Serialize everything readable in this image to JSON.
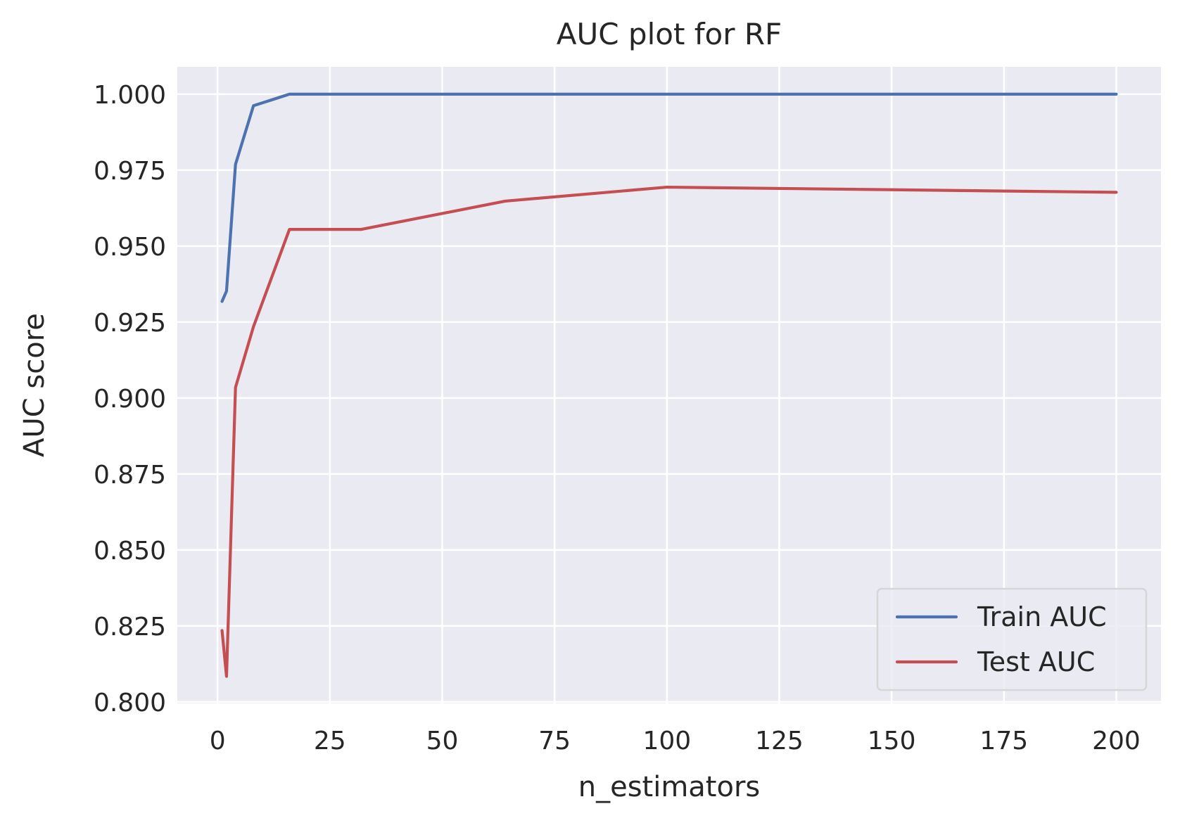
{
  "chart_data": {
    "type": "line",
    "title": "AUC plot for RF",
    "xlabel": "n_estimators",
    "ylabel": "AUC score",
    "xlim": [
      -8.95,
      209.95
    ],
    "ylim": [
      0.7995,
      1.009
    ],
    "xticks": [
      0,
      25,
      50,
      75,
      100,
      125,
      150,
      175,
      200
    ],
    "yticks": [
      0.8,
      0.825,
      0.85,
      0.875,
      0.9,
      0.925,
      0.95,
      0.975,
      1.0
    ],
    "xtick_labels": [
      "0",
      "25",
      "50",
      "75",
      "100",
      "125",
      "150",
      "175",
      "200"
    ],
    "ytick_labels": [
      "0.800",
      "0.825",
      "0.850",
      "0.875",
      "0.900",
      "0.925",
      "0.950",
      "0.975",
      "1.000"
    ],
    "grid": true,
    "legend_position": "lower-right",
    "background_color": "#eaeaf2",
    "series": [
      {
        "name": "Train AUC",
        "color": "#4c72b0",
        "x": [
          1,
          2,
          4,
          8,
          16,
          32,
          64,
          100,
          200
        ],
        "y": [
          0.9318,
          0.9352,
          0.9769,
          0.9962,
          1.0,
          1.0,
          1.0,
          1.0,
          1.0
        ]
      },
      {
        "name": "Test AUC",
        "color": "#c44e52",
        "x": [
          1,
          2,
          4,
          8,
          16,
          32,
          64,
          100,
          200
        ],
        "y": [
          0.8235,
          0.8084,
          0.9035,
          0.9235,
          0.9555,
          0.9555,
          0.9648,
          0.9694,
          0.9677
        ]
      }
    ]
  }
}
